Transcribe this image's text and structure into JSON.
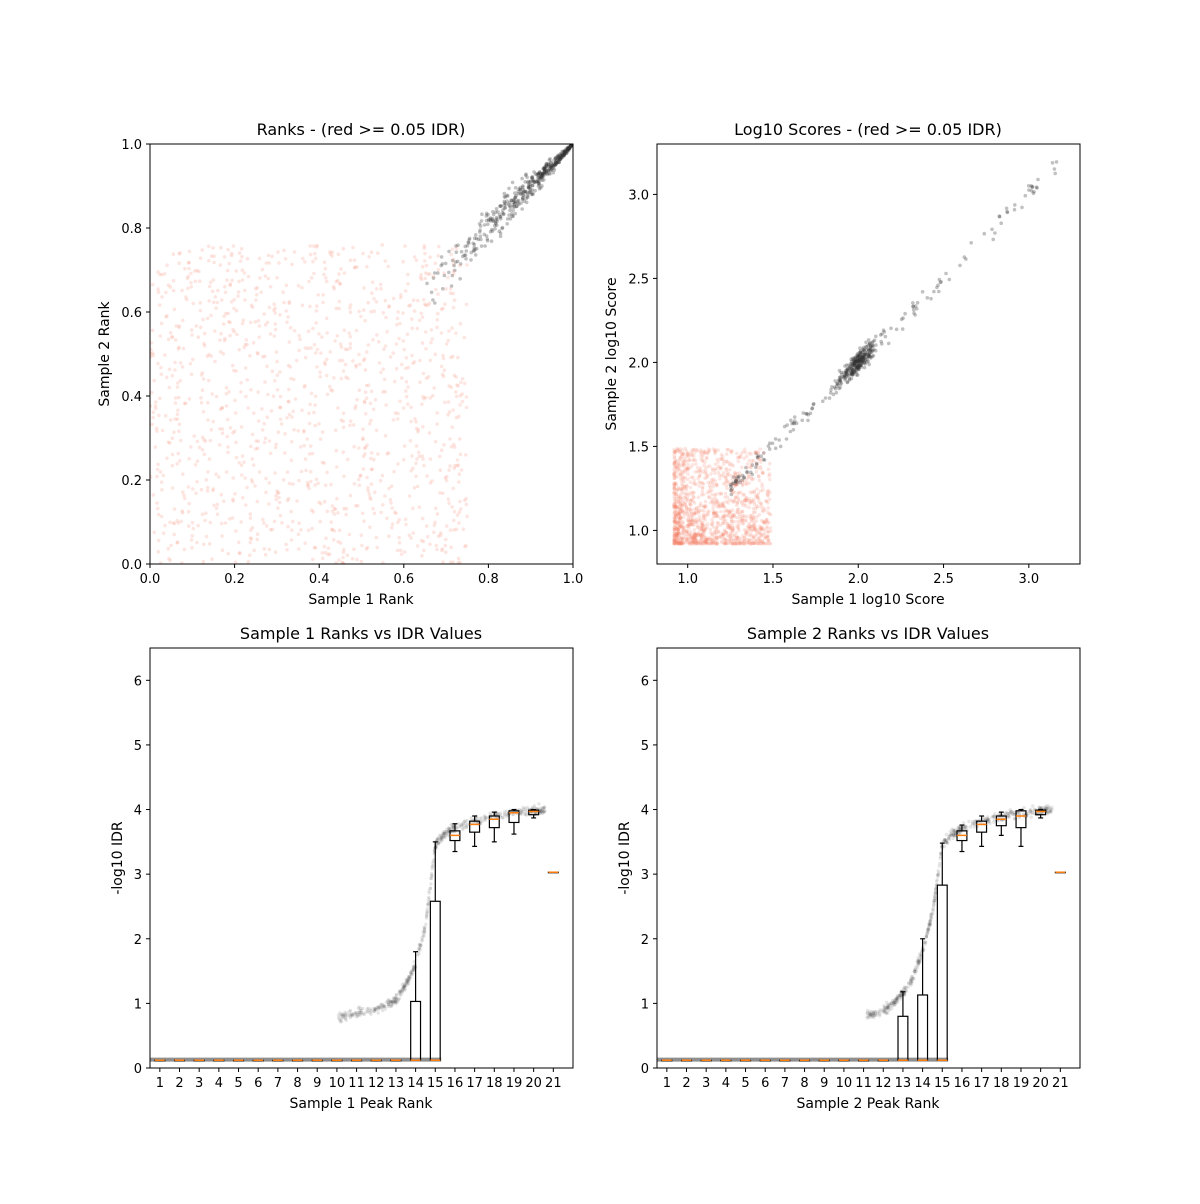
{
  "colors": {
    "pass": "#333333",
    "fail": "#f4846a",
    "box": "#000000",
    "median": "#ff7f0e"
  },
  "chart_data": [
    {
      "id": "ranks",
      "type": "scatter",
      "title": "Ranks - (red >= 0.05 IDR)",
      "xlabel": "Sample 1 Rank",
      "ylabel": "Sample 2 Rank",
      "xlim": [
        0.0,
        1.0
      ],
      "ylim": [
        0.0,
        1.0
      ],
      "xticks": [
        "0.0",
        "0.2",
        "0.4",
        "0.6",
        "0.8",
        "1.0"
      ],
      "yticks": [
        "0.0",
        "0.2",
        "0.4",
        "0.6",
        "0.8",
        "1.0"
      ],
      "series": [
        {
          "status": "idr_below_0.05",
          "x_range": [
            0.65,
            1.0
          ],
          "y_trend": "near diagonal, spread ±0.06",
          "count_shown": 450
        },
        {
          "status": "idr_at_or_above_0.05",
          "x_range": [
            0.0,
            0.75
          ],
          "y_range": [
            0.0,
            0.76
          ],
          "count_shown": 1200
        }
      ]
    },
    {
      "id": "scores",
      "type": "scatter",
      "title": "Log10 Scores - (red >= 0.05 IDR)",
      "xlabel": "Sample 1 log10 Score",
      "ylabel": "Sample 2 log10 Score",
      "xlim": [
        0.82,
        3.3
      ],
      "ylim": [
        0.8,
        3.3
      ],
      "xticks": [
        "1.0",
        "1.5",
        "2.0",
        "2.5",
        "3.0"
      ],
      "yticks": [
        "1.0",
        "1.5",
        "2.0",
        "2.5",
        "3.0"
      ],
      "series": [
        {
          "status": "idr_below_0.05",
          "x_range": [
            1.25,
            3.18
          ],
          "y_trend": "near diagonal, dense cluster at 2.0",
          "count_shown": 420
        },
        {
          "status": "idr_at_or_above_0.05",
          "x_range": [
            0.92,
            1.55
          ],
          "y_range": [
            0.92,
            1.55
          ],
          "count_shown": 1300
        }
      ]
    },
    {
      "id": "s1_idr",
      "type": "box",
      "title": "Sample 1 Ranks vs IDR Values",
      "xlabel": "Sample 1 Peak Rank",
      "ylabel": "-log10 IDR",
      "ylim": [
        0,
        6.5
      ],
      "xticks": [
        "1",
        "2",
        "3",
        "4",
        "5",
        "6",
        "7",
        "8",
        "9",
        "10",
        "11",
        "12",
        "13",
        "14",
        "15",
        "16",
        "17",
        "18",
        "19",
        "20",
        "21"
      ],
      "yticks": [
        "0",
        "1",
        "2",
        "3",
        "4",
        "5",
        "6"
      ],
      "boxes": [
        {
          "rank": 1,
          "whislo": 0.12,
          "q1": 0.12,
          "med": 0.12,
          "q3": 0.12,
          "whishi": 0.12
        },
        {
          "rank": 2,
          "whislo": 0.12,
          "q1": 0.12,
          "med": 0.12,
          "q3": 0.12,
          "whishi": 0.12
        },
        {
          "rank": 3,
          "whislo": 0.12,
          "q1": 0.12,
          "med": 0.12,
          "q3": 0.12,
          "whishi": 0.12
        },
        {
          "rank": 4,
          "whislo": 0.12,
          "q1": 0.12,
          "med": 0.12,
          "q3": 0.12,
          "whishi": 0.12
        },
        {
          "rank": 5,
          "whislo": 0.12,
          "q1": 0.12,
          "med": 0.12,
          "q3": 0.12,
          "whishi": 0.12
        },
        {
          "rank": 6,
          "whislo": 0.12,
          "q1": 0.12,
          "med": 0.12,
          "q3": 0.12,
          "whishi": 0.12
        },
        {
          "rank": 7,
          "whislo": 0.12,
          "q1": 0.12,
          "med": 0.12,
          "q3": 0.12,
          "whishi": 0.12
        },
        {
          "rank": 8,
          "whislo": 0.12,
          "q1": 0.12,
          "med": 0.12,
          "q3": 0.12,
          "whishi": 0.12
        },
        {
          "rank": 9,
          "whislo": 0.12,
          "q1": 0.12,
          "med": 0.12,
          "q3": 0.12,
          "whishi": 0.12
        },
        {
          "rank": 10,
          "whislo": 0.12,
          "q1": 0.12,
          "med": 0.12,
          "q3": 0.12,
          "whishi": 0.12
        },
        {
          "rank": 11,
          "whislo": 0.12,
          "q1": 0.12,
          "med": 0.12,
          "q3": 0.12,
          "whishi": 0.12
        },
        {
          "rank": 12,
          "whislo": 0.12,
          "q1": 0.12,
          "med": 0.12,
          "q3": 0.12,
          "whishi": 0.12
        },
        {
          "rank": 13,
          "whislo": 0.12,
          "q1": 0.12,
          "med": 0.12,
          "q3": 0.12,
          "whishi": 0.12
        },
        {
          "rank": 14,
          "whislo": 0.12,
          "q1": 0.12,
          "med": 0.12,
          "q3": 1.03,
          "whishi": 1.8
        },
        {
          "rank": 15,
          "whislo": 0.12,
          "q1": 0.12,
          "med": 0.12,
          "q3": 2.58,
          "whishi": 3.5
        },
        {
          "rank": 16,
          "whislo": 3.35,
          "q1": 3.52,
          "med": 3.6,
          "q3": 3.67,
          "whishi": 3.78
        },
        {
          "rank": 17,
          "whislo": 3.43,
          "q1": 3.65,
          "med": 3.77,
          "q3": 3.82,
          "whishi": 3.9
        },
        {
          "rank": 18,
          "whislo": 3.5,
          "q1": 3.72,
          "med": 3.85,
          "q3": 3.9,
          "whishi": 3.96
        },
        {
          "rank": 19,
          "whislo": 3.62,
          "q1": 3.8,
          "med": 3.95,
          "q3": 3.98,
          "whishi": 4.0
        },
        {
          "rank": 20,
          "whislo": 3.87,
          "q1": 3.92,
          "med": 3.97,
          "q3": 3.99,
          "whishi": 4.0
        },
        {
          "rank": 21,
          "whislo": 3.03,
          "q1": 3.03,
          "med": 3.03,
          "q3": 3.03,
          "whishi": 3.03
        }
      ],
      "point_trend": [
        [
          10.0,
          0.78
        ],
        [
          11.0,
          0.85
        ],
        [
          12.0,
          0.9
        ],
        [
          13.0,
          1.05
        ],
        [
          13.5,
          1.3
        ],
        [
          14.0,
          1.6
        ],
        [
          14.5,
          2.2
        ],
        [
          15.0,
          3.45
        ],
        [
          15.5,
          3.62
        ],
        [
          16.0,
          3.72
        ],
        [
          17.0,
          3.82
        ],
        [
          18.0,
          3.9
        ],
        [
          19.0,
          3.95
        ],
        [
          20.0,
          3.98
        ],
        [
          20.6,
          4.0
        ]
      ]
    },
    {
      "id": "s2_idr",
      "type": "box",
      "title": "Sample 2 Ranks vs IDR Values",
      "xlabel": "Sample 2 Peak Rank",
      "ylabel": "-log10 IDR",
      "ylim": [
        0,
        6.5
      ],
      "xticks": [
        "1",
        "2",
        "3",
        "4",
        "5",
        "6",
        "7",
        "8",
        "9",
        "10",
        "11",
        "12",
        "13",
        "14",
        "15",
        "16",
        "17",
        "18",
        "19",
        "20",
        "21"
      ],
      "yticks": [
        "0",
        "1",
        "2",
        "3",
        "4",
        "5",
        "6"
      ],
      "boxes": [
        {
          "rank": 1,
          "whislo": 0.12,
          "q1": 0.12,
          "med": 0.12,
          "q3": 0.12,
          "whishi": 0.12
        },
        {
          "rank": 2,
          "whislo": 0.12,
          "q1": 0.12,
          "med": 0.12,
          "q3": 0.12,
          "whishi": 0.12
        },
        {
          "rank": 3,
          "whislo": 0.12,
          "q1": 0.12,
          "med": 0.12,
          "q3": 0.12,
          "whishi": 0.12
        },
        {
          "rank": 4,
          "whislo": 0.12,
          "q1": 0.12,
          "med": 0.12,
          "q3": 0.12,
          "whishi": 0.12
        },
        {
          "rank": 5,
          "whislo": 0.12,
          "q1": 0.12,
          "med": 0.12,
          "q3": 0.12,
          "whishi": 0.12
        },
        {
          "rank": 6,
          "whislo": 0.12,
          "q1": 0.12,
          "med": 0.12,
          "q3": 0.12,
          "whishi": 0.12
        },
        {
          "rank": 7,
          "whislo": 0.12,
          "q1": 0.12,
          "med": 0.12,
          "q3": 0.12,
          "whishi": 0.12
        },
        {
          "rank": 8,
          "whislo": 0.12,
          "q1": 0.12,
          "med": 0.12,
          "q3": 0.12,
          "whishi": 0.12
        },
        {
          "rank": 9,
          "whislo": 0.12,
          "q1": 0.12,
          "med": 0.12,
          "q3": 0.12,
          "whishi": 0.12
        },
        {
          "rank": 10,
          "whislo": 0.12,
          "q1": 0.12,
          "med": 0.12,
          "q3": 0.12,
          "whishi": 0.12
        },
        {
          "rank": 11,
          "whislo": 0.12,
          "q1": 0.12,
          "med": 0.12,
          "q3": 0.12,
          "whishi": 0.12
        },
        {
          "rank": 12,
          "whislo": 0.12,
          "q1": 0.12,
          "med": 0.12,
          "q3": 0.12,
          "whishi": 0.12
        },
        {
          "rank": 13,
          "whislo": 0.12,
          "q1": 0.12,
          "med": 0.12,
          "q3": 0.8,
          "whishi": 1.18
        },
        {
          "rank": 14,
          "whislo": 0.12,
          "q1": 0.12,
          "med": 0.12,
          "q3": 1.13,
          "whishi": 2.0
        },
        {
          "rank": 15,
          "whislo": 0.12,
          "q1": 0.12,
          "med": 0.12,
          "q3": 2.83,
          "whishi": 3.48
        },
        {
          "rank": 16,
          "whislo": 3.35,
          "q1": 3.52,
          "med": 3.6,
          "q3": 3.67,
          "whishi": 3.76
        },
        {
          "rank": 17,
          "whislo": 3.43,
          "q1": 3.65,
          "med": 3.77,
          "q3": 3.82,
          "whishi": 3.9
        },
        {
          "rank": 18,
          "whislo": 3.6,
          "q1": 3.75,
          "med": 3.85,
          "q3": 3.9,
          "whishi": 3.96
        },
        {
          "rank": 19,
          "whislo": 3.43,
          "q1": 3.72,
          "med": 3.9,
          "q3": 3.98,
          "whishi": 4.0
        },
        {
          "rank": 20,
          "whislo": 3.87,
          "q1": 3.92,
          "med": 3.97,
          "q3": 3.99,
          "whishi": 4.0
        },
        {
          "rank": 21,
          "whislo": 3.03,
          "q1": 3.03,
          "med": 3.03,
          "q3": 3.03,
          "whishi": 3.03
        }
      ],
      "point_trend": [
        [
          11.0,
          0.8
        ],
        [
          12.0,
          0.88
        ],
        [
          12.5,
          1.0
        ],
        [
          13.0,
          1.15
        ],
        [
          13.5,
          1.4
        ],
        [
          14.0,
          1.8
        ],
        [
          14.5,
          2.4
        ],
        [
          15.0,
          3.45
        ],
        [
          15.5,
          3.62
        ],
        [
          16.0,
          3.72
        ],
        [
          17.0,
          3.82
        ],
        [
          18.0,
          3.9
        ],
        [
          19.0,
          3.95
        ],
        [
          20.0,
          3.98
        ],
        [
          20.6,
          4.0
        ]
      ]
    }
  ]
}
